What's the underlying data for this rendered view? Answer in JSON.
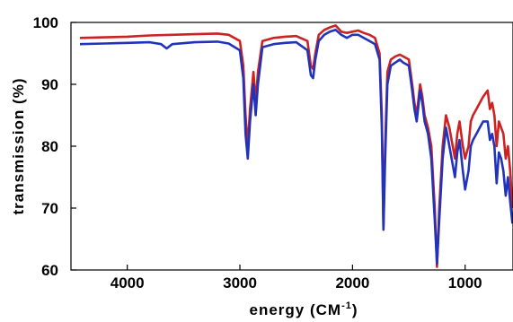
{
  "chart_data": {
    "type": "line",
    "xlabel": "energy (CM",
    "xlabel_sup": "-1",
    "xlabel_end": ")",
    "ylabel": "transmission (%)",
    "x_reversed": true,
    "xlim": [
      4500,
      575
    ],
    "ylim": [
      60,
      100
    ],
    "xticks": [
      4000,
      3000,
      2000,
      1000
    ],
    "xtick_labels": [
      "4000",
      "3000",
      "2000",
      "1000"
    ],
    "yticks": [
      60,
      70,
      80,
      90,
      100
    ],
    "ytick_labels": [
      "60",
      "70",
      "80",
      "90",
      "100"
    ],
    "grid": false,
    "series": [
      {
        "color": "#cc2222",
        "x": [
          4420,
          4200,
          4000,
          3800,
          3600,
          3400,
          3200,
          3100,
          3000,
          2970,
          2950,
          2930,
          2910,
          2880,
          2860,
          2840,
          2800,
          2700,
          2600,
          2500,
          2400,
          2370,
          2350,
          2330,
          2300,
          2250,
          2200,
          2150,
          2100,
          2050,
          2000,
          1950,
          1900,
          1850,
          1800,
          1760,
          1740,
          1725,
          1710,
          1690,
          1660,
          1620,
          1580,
          1550,
          1500,
          1470,
          1450,
          1430,
          1400,
          1380,
          1360,
          1330,
          1300,
          1270,
          1250,
          1230,
          1200,
          1170,
          1140,
          1110,
          1090,
          1070,
          1050,
          1020,
          1000,
          970,
          950,
          930,
          900,
          870,
          840,
          800,
          780,
          760,
          740,
          720,
          700,
          680,
          660,
          640,
          620,
          600,
          580
        ],
        "y": [
          97.5,
          97.6,
          97.7,
          97.9,
          98.0,
          98.1,
          98.2,
          98.0,
          97.0,
          93.0,
          85.0,
          80.0,
          86.0,
          92.0,
          87.0,
          92.0,
          97.0,
          97.5,
          97.7,
          97.8,
          97.0,
          93.0,
          92.5,
          95.0,
          98.0,
          98.8,
          99.2,
          99.5,
          98.5,
          98.3,
          98.5,
          98.7,
          98.3,
          98.0,
          97.5,
          95.0,
          85.0,
          67.0,
          80.0,
          92.0,
          94.0,
          94.5,
          94.8,
          94.5,
          94.0,
          90.0,
          87.0,
          85.0,
          90.0,
          88.0,
          85.0,
          83.0,
          80.0,
          70.0,
          60.5,
          70.0,
          80.0,
          85.0,
          83.0,
          80.0,
          78.0,
          82.0,
          84.0,
          80.0,
          78.0,
          80.0,
          84.0,
          85.0,
          86.0,
          87.0,
          88.0,
          89.0,
          86.0,
          87.0,
          85.0,
          80.0,
          84.0,
          83.0,
          82.0,
          78.0,
          80.0,
          76.0,
          70.0
        ]
      },
      {
        "color": "#2233bb",
        "x": [
          4420,
          4200,
          4000,
          3800,
          3700,
          3650,
          3600,
          3400,
          3200,
          3100,
          3000,
          2970,
          2950,
          2930,
          2910,
          2880,
          2860,
          2840,
          2800,
          2700,
          2600,
          2500,
          2400,
          2370,
          2350,
          2330,
          2300,
          2250,
          2200,
          2150,
          2100,
          2050,
          2000,
          1950,
          1900,
          1850,
          1800,
          1760,
          1740,
          1725,
          1710,
          1690,
          1660,
          1620,
          1580,
          1550,
          1500,
          1470,
          1450,
          1430,
          1400,
          1380,
          1360,
          1330,
          1300,
          1270,
          1250,
          1230,
          1200,
          1170,
          1140,
          1110,
          1090,
          1070,
          1050,
          1020,
          1000,
          970,
          950,
          930,
          900,
          870,
          840,
          800,
          780,
          760,
          740,
          720,
          700,
          680,
          660,
          640,
          620,
          600,
          580
        ],
        "y": [
          96.5,
          96.6,
          96.7,
          96.8,
          96.5,
          95.8,
          96.5,
          96.8,
          96.9,
          96.6,
          95.5,
          91.0,
          82.0,
          78.0,
          84.0,
          90.0,
          85.0,
          90.0,
          96.0,
          96.5,
          96.7,
          96.8,
          95.5,
          91.5,
          91.0,
          94.0,
          97.0,
          98.0,
          98.5,
          98.8,
          98.0,
          97.5,
          98.0,
          98.0,
          97.5,
          97.0,
          96.5,
          94.0,
          83.0,
          66.5,
          78.0,
          90.0,
          93.0,
          93.5,
          94.0,
          93.5,
          93.0,
          89.0,
          86.0,
          84.0,
          89.0,
          87.0,
          84.0,
          82.0,
          78.0,
          68.0,
          61.0,
          68.0,
          78.0,
          83.0,
          80.0,
          77.0,
          75.0,
          79.0,
          81.0,
          76.0,
          73.0,
          76.0,
          80.0,
          81.0,
          82.0,
          83.0,
          84.0,
          84.0,
          81.0,
          82.0,
          80.0,
          74.0,
          79.0,
          78.0,
          76.0,
          72.0,
          75.0,
          71.0,
          67.5
        ]
      }
    ]
  }
}
